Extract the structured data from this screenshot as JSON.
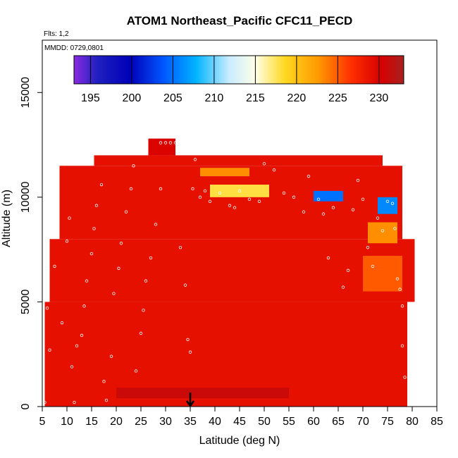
{
  "chart_data": {
    "type": "heatmap",
    "title": "ATOM1 Northeast_Pacific CFC11_PECD",
    "flights_label": "Flts: 1,2",
    "dates_label": "MMDD: 0729,0801",
    "xlabel": "Latitude (deg N)",
    "ylabel": "Altitude (m)",
    "xlim": [
      5,
      85
    ],
    "ylim": [
      0,
      17500
    ],
    "x_ticks": [
      5,
      10,
      15,
      20,
      25,
      30,
      35,
      40,
      45,
      50,
      55,
      60,
      65,
      70,
      75,
      80,
      85
    ],
    "y_ticks": [
      0,
      5000,
      10000,
      15000
    ],
    "colorbar": {
      "min": 193,
      "max": 233,
      "ticks": [
        195,
        200,
        205,
        210,
        215,
        220,
        225,
        230
      ]
    },
    "colors": {
      "background_field": "#dc0a00",
      "marker": "#ffffff",
      "frame": "#000000"
    },
    "arrow_latitude": 35,
    "value_regions": [
      {
        "lat": [
          5.5,
          79
        ],
        "alt": [
          0,
          5000
        ],
        "value": 229
      },
      {
        "lat": [
          6.5,
          80.5
        ],
        "alt": [
          5000,
          8000
        ],
        "value": 229
      },
      {
        "lat": [
          8.5,
          78
        ],
        "alt": [
          8000,
          11500
        ],
        "value": 229
      },
      {
        "lat": [
          15.5,
          74
        ],
        "alt": [
          11500,
          12000
        ],
        "value": 229
      },
      {
        "lat": [
          26.5,
          32
        ],
        "alt": [
          12000,
          12800
        ],
        "value": 230
      },
      {
        "lat": [
          39,
          51
        ],
        "alt": [
          10000,
          10600
        ],
        "value": 218
      },
      {
        "lat": [
          37,
          47
        ],
        "alt": [
          11000,
          11400
        ],
        "value": 223
      },
      {
        "lat": [
          60,
          66
        ],
        "alt": [
          9800,
          10300
        ],
        "value": 205
      },
      {
        "lat": [
          73,
          77
        ],
        "alt": [
          9200,
          10000
        ],
        "value": 206
      },
      {
        "lat": [
          71,
          77
        ],
        "alt": [
          7800,
          8800
        ],
        "value": 223
      },
      {
        "lat": [
          70,
          78
        ],
        "alt": [
          5500,
          7200
        ],
        "value": 225
      },
      {
        "lat": [
          20,
          55
        ],
        "alt": [
          400,
          900
        ],
        "value": 231
      }
    ],
    "sample_points": [
      {
        "lat": 5.5,
        "alt": 200
      },
      {
        "lat": 6,
        "alt": 4700
      },
      {
        "lat": 6.5,
        "alt": 2700
      },
      {
        "lat": 7.5,
        "alt": 6700
      },
      {
        "lat": 8,
        "alt": 10600
      },
      {
        "lat": 9,
        "alt": 4000
      },
      {
        "lat": 10,
        "alt": 7900
      },
      {
        "lat": 10.5,
        "alt": 9000
      },
      {
        "lat": 11,
        "alt": 1900
      },
      {
        "lat": 11.5,
        "alt": 200
      },
      {
        "lat": 12,
        "alt": 2900
      },
      {
        "lat": 13,
        "alt": 3400
      },
      {
        "lat": 13.5,
        "alt": 4800
      },
      {
        "lat": 14,
        "alt": 6000
      },
      {
        "lat": 15,
        "alt": 7300
      },
      {
        "lat": 15.5,
        "alt": 8500
      },
      {
        "lat": 16,
        "alt": 9600
      },
      {
        "lat": 17,
        "alt": 10600
      },
      {
        "lat": 17.5,
        "alt": 1200
      },
      {
        "lat": 18,
        "alt": 300
      },
      {
        "lat": 19,
        "alt": 2400
      },
      {
        "lat": 19.5,
        "alt": 5400
      },
      {
        "lat": 20.5,
        "alt": 6600
      },
      {
        "lat": 21,
        "alt": 7800
      },
      {
        "lat": 22,
        "alt": 9300
      },
      {
        "lat": 23,
        "alt": 10400
      },
      {
        "lat": 23.5,
        "alt": 11500
      },
      {
        "lat": 24,
        "alt": 1700
      },
      {
        "lat": 25,
        "alt": 3500
      },
      {
        "lat": 25.5,
        "alt": 4600
      },
      {
        "lat": 26,
        "alt": 6000
      },
      {
        "lat": 27,
        "alt": 7100
      },
      {
        "lat": 28,
        "alt": 8700
      },
      {
        "lat": 29,
        "alt": 10400
      },
      {
        "lat": 29,
        "alt": 12600
      },
      {
        "lat": 30,
        "alt": 12600
      },
      {
        "lat": 31,
        "alt": 12600
      },
      {
        "lat": 32,
        "alt": 12600
      },
      {
        "lat": 33,
        "alt": 7600
      },
      {
        "lat": 34,
        "alt": 5800
      },
      {
        "lat": 34.5,
        "alt": 3200
      },
      {
        "lat": 35,
        "alt": 2600
      },
      {
        "lat": 35.5,
        "alt": 10400
      },
      {
        "lat": 36,
        "alt": 11800
      },
      {
        "lat": 37,
        "alt": 10000
      },
      {
        "lat": 38,
        "alt": 10300
      },
      {
        "lat": 39,
        "alt": 9800
      },
      {
        "lat": 41,
        "alt": 10200
      },
      {
        "lat": 43,
        "alt": 9600
      },
      {
        "lat": 44,
        "alt": 9500
      },
      {
        "lat": 45,
        "alt": 10300
      },
      {
        "lat": 47,
        "alt": 9900
      },
      {
        "lat": 49,
        "alt": 9800
      },
      {
        "lat": 50,
        "alt": 11600
      },
      {
        "lat": 52,
        "alt": 11300
      },
      {
        "lat": 54,
        "alt": 10200
      },
      {
        "lat": 56,
        "alt": 10000
      },
      {
        "lat": 58,
        "alt": 9300
      },
      {
        "lat": 59,
        "alt": 11000
      },
      {
        "lat": 61,
        "alt": 9900
      },
      {
        "lat": 62,
        "alt": 9200
      },
      {
        "lat": 63,
        "alt": 7100
      },
      {
        "lat": 64,
        "alt": 9500
      },
      {
        "lat": 66,
        "alt": 5700
      },
      {
        "lat": 67,
        "alt": 6500
      },
      {
        "lat": 68,
        "alt": 9400
      },
      {
        "lat": 69,
        "alt": 10800
      },
      {
        "lat": 70,
        "alt": 9900
      },
      {
        "lat": 71,
        "alt": 7600
      },
      {
        "lat": 72,
        "alt": 6700
      },
      {
        "lat": 73,
        "alt": 9000
      },
      {
        "lat": 74,
        "alt": 8400
      },
      {
        "lat": 75,
        "alt": 9800
      },
      {
        "lat": 76,
        "alt": 9700
      },
      {
        "lat": 76.5,
        "alt": 8500
      },
      {
        "lat": 77,
        "alt": 6100
      },
      {
        "lat": 77.5,
        "alt": 5600
      },
      {
        "lat": 78,
        "alt": 4800
      },
      {
        "lat": 78,
        "alt": 2900
      },
      {
        "lat": 78.5,
        "alt": 1400
      }
    ]
  }
}
